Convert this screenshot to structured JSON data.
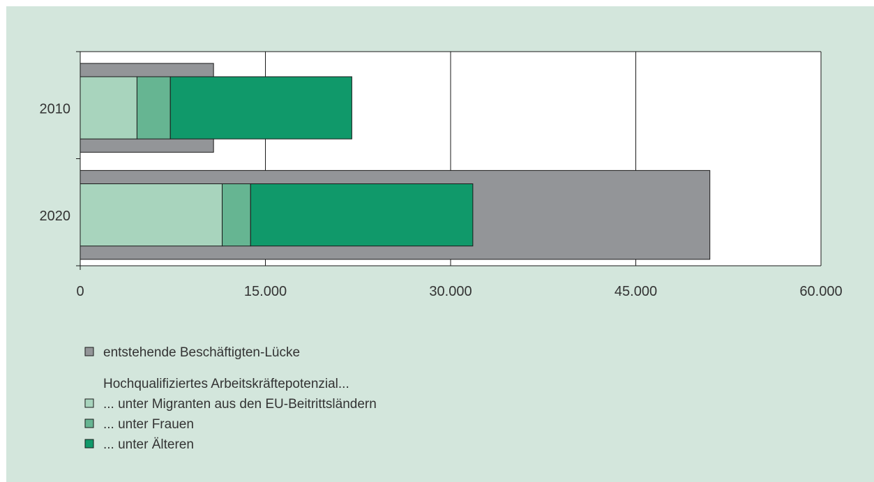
{
  "chart_data": {
    "type": "bar",
    "orientation": "horizontal",
    "categories": [
      "2010",
      "2020"
    ],
    "xlim": [
      0,
      60000
    ],
    "xticks": [
      "0",
      "15.000",
      "30.000",
      "45.000",
      "60.000"
    ],
    "grid": true,
    "colors": {
      "gap": "#939598",
      "migranten": "#a8d4bd",
      "frauen": "#66b592",
      "aeltere": "#10996a",
      "panel_bg": "#d3e6dc",
      "plot_bg": "#ffffff"
    },
    "gap_series": {
      "name": "entstehende Beschäftigten-Lücke",
      "values": [
        10800,
        51000
      ]
    },
    "potential_series": [
      {
        "name": "... unter Migranten aus den EU-Beitrittsländern",
        "values": [
          4600,
          11500
        ]
      },
      {
        "name": "... unter Frauen",
        "values": [
          2700,
          2300
        ]
      },
      {
        "name": "... unter Älteren",
        "values": [
          14700,
          18000
        ]
      }
    ],
    "legend": {
      "gap_label": "entstehende Beschäftigten-Lücke",
      "group_heading": "Hochqualifiziertes Arbeitskräftepotenzial...",
      "items": [
        "... unter Migranten aus den EU-Beitrittsländern",
        "... unter Frauen",
        "... unter Älteren"
      ],
      "placement": "bottom-left"
    }
  }
}
